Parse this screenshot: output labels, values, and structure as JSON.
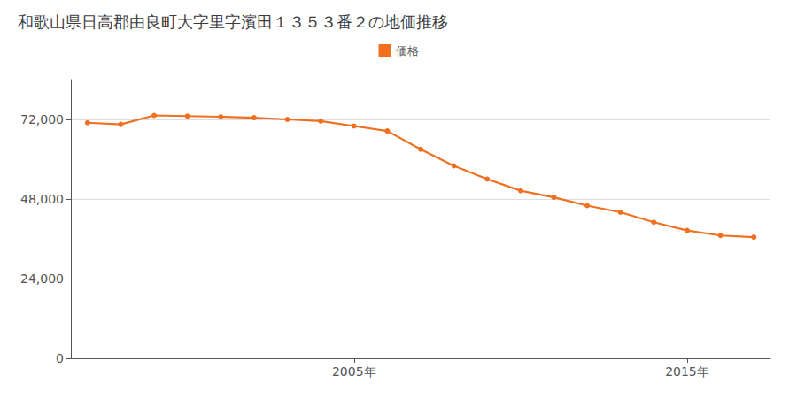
{
  "chart_data": {
    "type": "line",
    "title": "和歌山県日高郡由良町大字里字濱田１３５３番２の地価推移",
    "x": [
      1997,
      1998,
      1999,
      2000,
      2001,
      2002,
      2003,
      2004,
      2005,
      2006,
      2007,
      2008,
      2009,
      2010,
      2011,
      2012,
      2013,
      2014,
      2015,
      2016,
      2017
    ],
    "series": [
      {
        "name": "価格",
        "color": "#f07020",
        "values": [
          71000,
          70500,
          73200,
          73000,
          72800,
          72500,
          72000,
          71500,
          70000,
          68500,
          63000,
          58000,
          54000,
          50500,
          48500,
          46000,
          44000,
          41000,
          38500,
          37000,
          36500
        ]
      }
    ],
    "xlim": [
      1996.5,
      2017.5
    ],
    "xticks": [
      {
        "value": 2005,
        "label": "2005年"
      },
      {
        "value": 2015,
        "label": "2015年"
      }
    ],
    "ylim": [
      0,
      84000
    ],
    "yticks": [
      0,
      {
        "value": 24000,
        "label": "24,000"
      },
      {
        "value": 48000,
        "label": "48,000"
      },
      {
        "value": 72000,
        "label": "72,000"
      }
    ],
    "grid": true,
    "legend": "top",
    "marker": "circle"
  }
}
